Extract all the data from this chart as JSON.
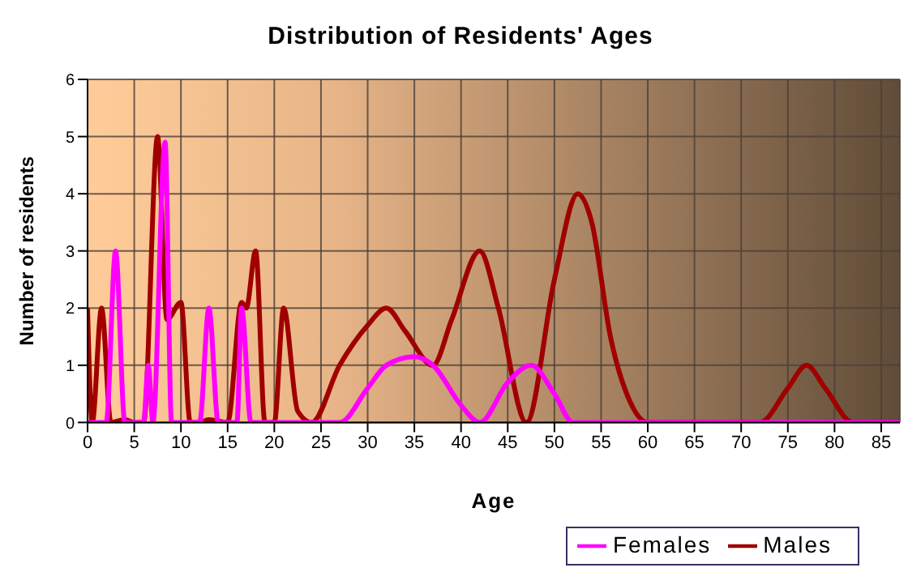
{
  "chart_data": {
    "type": "line",
    "title": "Distribution of Residents' Ages",
    "xlabel": "Age",
    "ylabel": "Number of residents",
    "xlim": [
      0,
      87
    ],
    "xticks": [
      0,
      5,
      10,
      15,
      20,
      25,
      30,
      35,
      40,
      45,
      50,
      55,
      60,
      65,
      70,
      75,
      80,
      85
    ],
    "ylim": [
      0,
      6
    ],
    "yticks": [
      0,
      1,
      2,
      3,
      4,
      5,
      6
    ],
    "grid": true,
    "legend": "bottom right",
    "marker": "none",
    "line_style": "solid",
    "series": [
      {
        "name": "Males",
        "color": "#a00000",
        "x": [
          0,
          0.5,
          1.5,
          2.5,
          4,
          5,
          6,
          7.5,
          8.5,
          10,
          11,
          12,
          13,
          15,
          16.5,
          17,
          18,
          19,
          20,
          21,
          22.5,
          24,
          27,
          30,
          32,
          34,
          37,
          39,
          42,
          44,
          47,
          50,
          52.5,
          54,
          56,
          58,
          60,
          65,
          72,
          75,
          77,
          79,
          82,
          87
        ],
        "values": [
          2,
          0,
          2,
          0,
          0.05,
          0,
          0,
          5,
          1.8,
          2.1,
          0,
          0,
          0.05,
          0,
          2.1,
          2,
          3,
          0,
          0,
          2,
          0.2,
          0,
          1,
          1.7,
          2,
          1.6,
          1,
          1.8,
          3,
          2,
          0,
          2.5,
          4,
          3.5,
          1.5,
          0.4,
          0,
          0,
          0,
          0.6,
          1,
          0.6,
          0,
          0
        ]
      },
      {
        "name": "Females",
        "color": "#ff00ff",
        "x": [
          0,
          2,
          3,
          4,
          6,
          6.5,
          7,
          8.3,
          9,
          12,
          13,
          14,
          16,
          16.5,
          17.5,
          27,
          30,
          32,
          35,
          37,
          40,
          42,
          45,
          47.5,
          50,
          52,
          87
        ],
        "values": [
          0,
          0,
          3,
          0,
          0,
          1,
          0,
          4.9,
          0,
          0,
          2,
          0,
          0,
          2,
          0,
          0,
          0.6,
          1,
          1.15,
          1,
          0.3,
          0,
          0.7,
          1,
          0.5,
          0,
          0
        ]
      }
    ]
  }
}
